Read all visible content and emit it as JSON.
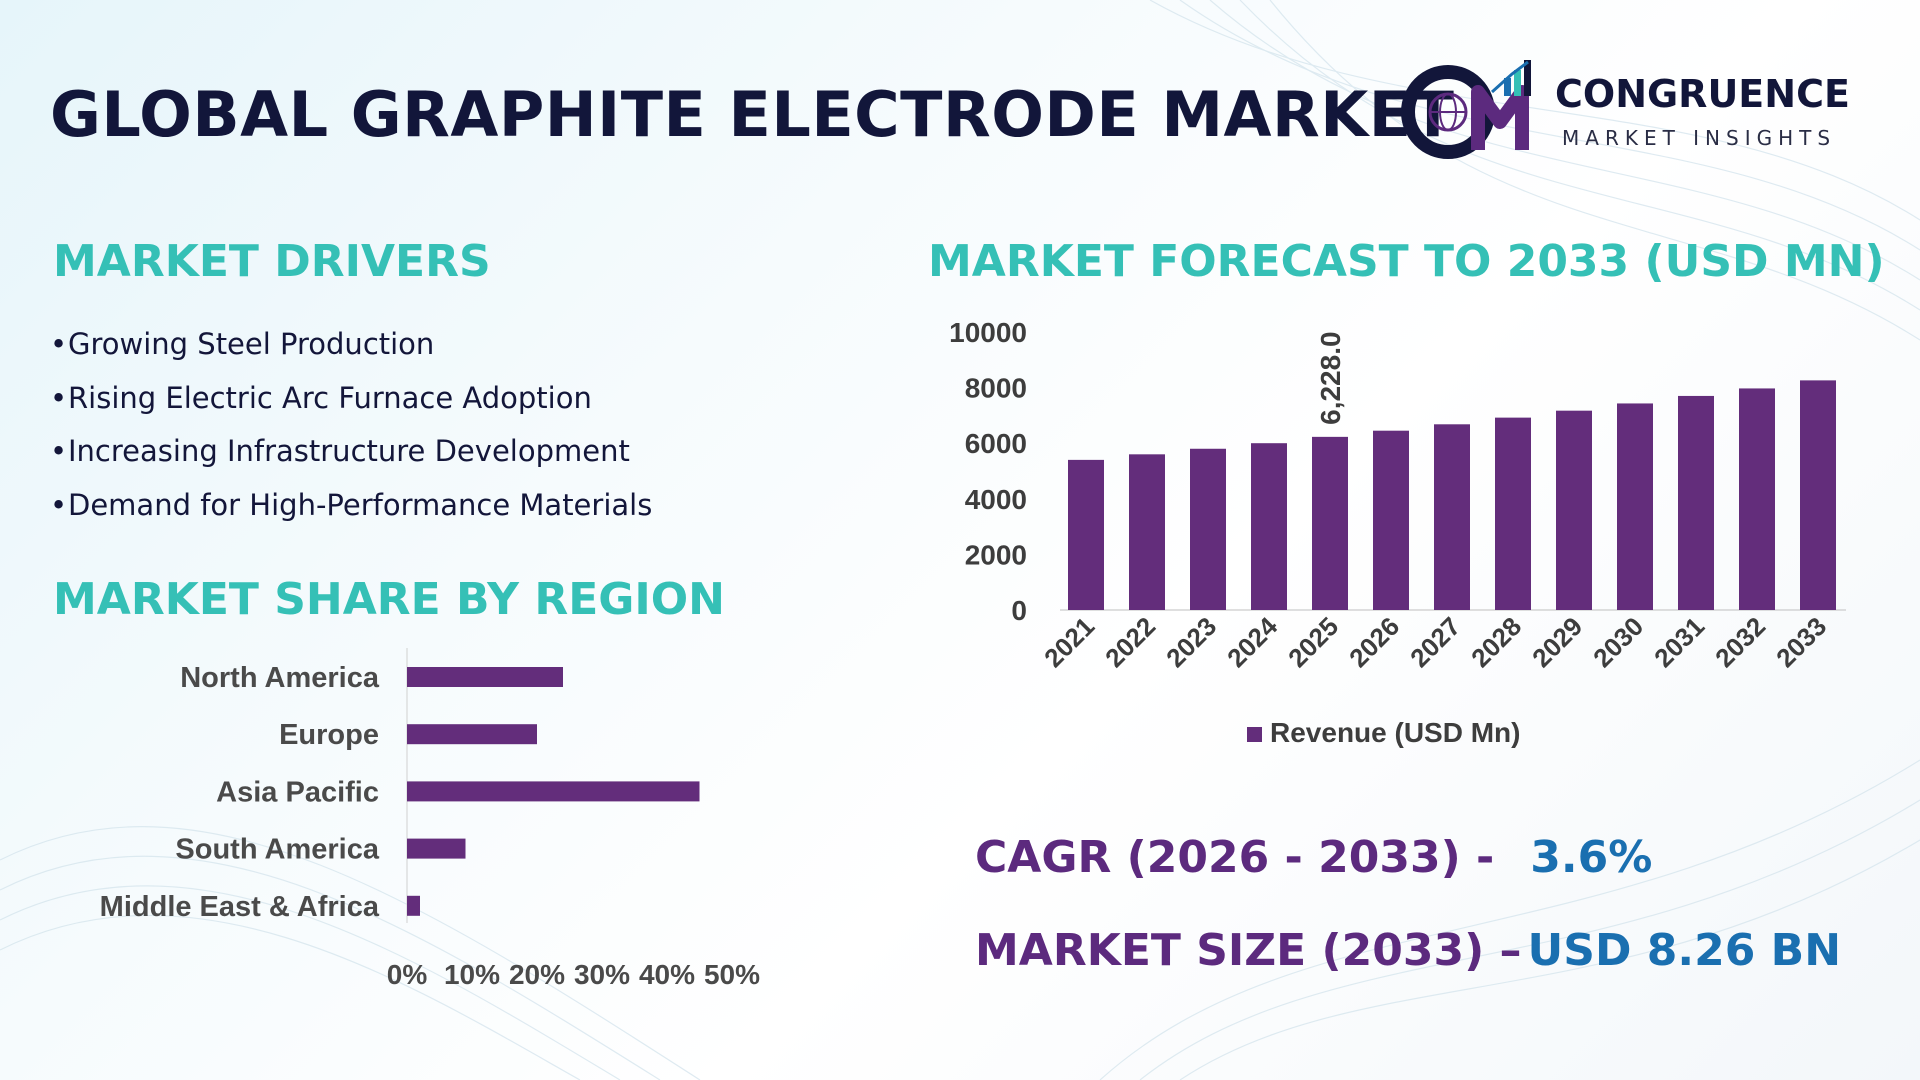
{
  "header": {
    "title": "GLOBAL GRAPHITE ELECTRODE MARKET",
    "brand_name": "CONGRUENCE",
    "brand_sub": "MARKET INSIGHTS"
  },
  "drivers": {
    "title": "MARKET DRIVERS",
    "items": [
      "Growing Steel Production",
      "Rising Electric Arc Furnace Adoption",
      "Increasing Infrastructure Development",
      "Demand for High-Performance Materials"
    ]
  },
  "region": {
    "title": "MARKET SHARE BY REGION"
  },
  "forecast": {
    "title": "MARKET FORECAST TO 2033 (USD MN)"
  },
  "stats": {
    "cagr_label": "CAGR (2026 - 2033) -",
    "cagr_value": "3.6%",
    "size_label": "MARKET SIZE (2033) –",
    "size_value": "USD  8.26 BN"
  },
  "colors": {
    "bar": "#632d7b",
    "title_teal": "#35c0b6",
    "heading_navy": "#12163a",
    "stat_purple": "#5c2a7e",
    "stat_blue": "#1a6fb0"
  },
  "chart_data": [
    {
      "type": "bar",
      "orientation": "vertical",
      "categories": [
        "2021",
        "2022",
        "2023",
        "2024",
        "2025",
        "2026",
        "2027",
        "2028",
        "2029",
        "2030",
        "2031",
        "2032",
        "2033"
      ],
      "series": [
        {
          "name": "Revenue (USD Mn)",
          "values": [
            5400,
            5600,
            5800,
            6000,
            6228,
            6450,
            6680,
            6920,
            7170,
            7430,
            7700,
            7970,
            8260
          ]
        }
      ],
      "ylim": [
        0,
        10000
      ],
      "yticks": [
        "0",
        "2000",
        "4000",
        "6000",
        "8000",
        "10000"
      ],
      "data_labels": [
        {
          "index": 4,
          "text": "6,228.0"
        }
      ],
      "legend": "bottom",
      "grid": false
    },
    {
      "type": "bar",
      "orientation": "horizontal",
      "categories": [
        "North America",
        "Europe",
        "Asia Pacific",
        "South America",
        "Middle East & Africa"
      ],
      "values": [
        24,
        20,
        45,
        9,
        2
      ],
      "xlim": [
        0,
        50
      ],
      "xticks": [
        "0%",
        "10%",
        "20%",
        "30%",
        "40%",
        "50%"
      ],
      "grid": false
    }
  ]
}
